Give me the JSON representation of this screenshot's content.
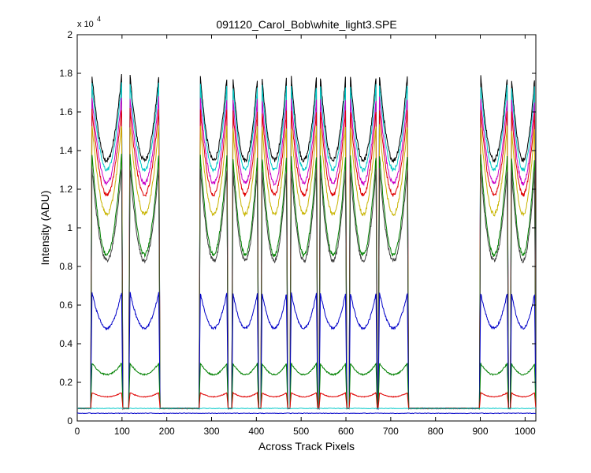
{
  "chart_data": {
    "type": "line",
    "title": "091120_Carol_Bob\\white_light3.SPE",
    "xlabel": "Across Track Pixels",
    "ylabel": "Intensity (ADU)",
    "xlim": [
      0,
      1024
    ],
    "ylim": [
      0,
      20000
    ],
    "y_exponent_label": "x 10",
    "y_exponent_power": "4",
    "y_scale_factor": 10000,
    "xticks": [
      0,
      100,
      200,
      300,
      400,
      500,
      600,
      700,
      800,
      900,
      1000
    ],
    "yticks": [
      0,
      0.2,
      0.4,
      0.6,
      0.8,
      1,
      1.2,
      1.4,
      1.6,
      1.8,
      2
    ],
    "grid": false,
    "legend": "none",
    "baseline": 650,
    "fiber_bands": [
      [
        30,
        102
      ],
      [
        115,
        185
      ],
      [
        272,
        337
      ],
      [
        345,
        405
      ],
      [
        410,
        470
      ],
      [
        475,
        537
      ],
      [
        540,
        602
      ],
      [
        607,
        670
      ],
      [
        672,
        740
      ],
      [
        898,
        963
      ],
      [
        967,
        1024
      ]
    ],
    "series": [
      {
        "color": "#000000",
        "edge_peak": 18700,
        "dip": 13500,
        "noise": 250
      },
      {
        "color": "#00c8c8",
        "edge_peak": 18300,
        "dip": 13000,
        "noise": 200
      },
      {
        "color": "#c800c8",
        "edge_peak": 17600,
        "dip": 12300,
        "noise": 200
      },
      {
        "color": "#e00000",
        "edge_peak": 17000,
        "dip": 11700,
        "noise": 200
      },
      {
        "color": "#c8b400",
        "edge_peak": 16200,
        "dip": 10700,
        "noise": 200
      },
      {
        "color": "#008000",
        "edge_peak": 14800,
        "dip": 8600,
        "noise": 200
      },
      {
        "color": "#404040",
        "edge_peak": 14000,
        "dip": 8300,
        "noise": 220
      },
      {
        "color": "#0000c8",
        "edge_peak": 7000,
        "dip": 4800,
        "noise": 120
      },
      {
        "color": "#008000",
        "edge_peak": 3100,
        "dip": 2400,
        "noise": 70
      },
      {
        "color": "#e00000",
        "edge_peak": 1500,
        "dip": 1250,
        "noise": 40
      }
    ],
    "flat_series": [
      {
        "color": "#00c8c8",
        "value": 650
      },
      {
        "color": "#0000c8",
        "value": 400
      }
    ]
  }
}
